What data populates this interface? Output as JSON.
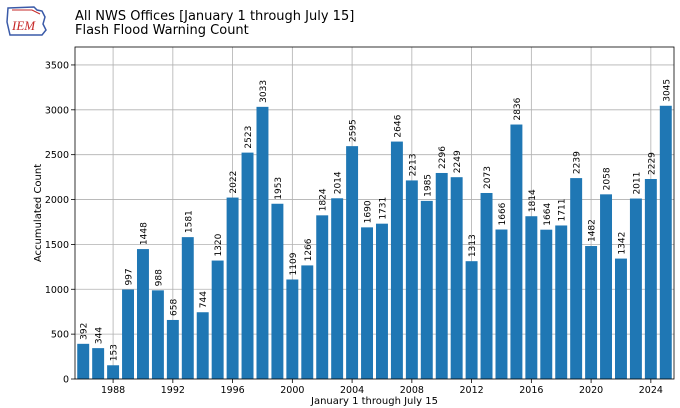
{
  "header": {
    "logo_text": "IEM",
    "title_line1": "All NWS Offices [January 1 through July 15]",
    "title_line2": "Flash Flood Warning Count"
  },
  "chart_data": {
    "type": "bar",
    "title": "All NWS Offices [January 1 through July 15]\nFlash Flood Warning Count",
    "xlabel": "January 1 through July 15",
    "ylabel": "Accumulated Count",
    "categories": [
      1986,
      1987,
      1988,
      1989,
      1990,
      1991,
      1992,
      1993,
      1994,
      1995,
      1996,
      1997,
      1998,
      1999,
      2000,
      2001,
      2002,
      2003,
      2004,
      2005,
      2006,
      2007,
      2008,
      2009,
      2010,
      2011,
      2012,
      2013,
      2014,
      2015,
      2016,
      2017,
      2018,
      2019,
      2020,
      2021,
      2022,
      2023,
      2024,
      2025
    ],
    "values": [
      392,
      344,
      153,
      997,
      1448,
      988,
      658,
      1581,
      744,
      1320,
      2022,
      2523,
      3033,
      1953,
      1109,
      1266,
      1824,
      2014,
      2595,
      1690,
      1731,
      2646,
      2213,
      1985,
      2296,
      2249,
      1313,
      2073,
      1666,
      2836,
      1814,
      1664,
      1711,
      2239,
      1482,
      2058,
      1342,
      2011,
      2229,
      3045
    ],
    "xticks": [
      1988,
      1992,
      1996,
      2000,
      2004,
      2008,
      2012,
      2016,
      2020,
      2024
    ],
    "yticks": [
      0,
      500,
      1000,
      1500,
      2000,
      2500,
      3000,
      3500
    ],
    "xlim": [
      1985.45,
      2025.55
    ],
    "ylim": [
      0,
      3700
    ],
    "bar_color": "#1f77b4",
    "grid": true
  }
}
